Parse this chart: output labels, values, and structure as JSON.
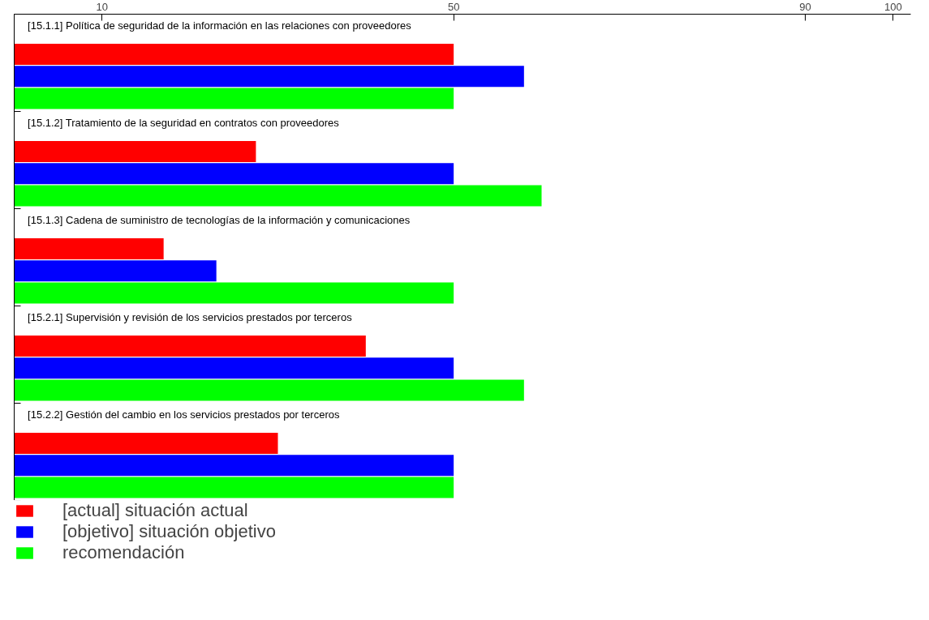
{
  "chart_data": {
    "type": "bar",
    "orientation": "horizontal",
    "categories": [
      "[15.1.1] Política de seguridad de la información en las relaciones con proveedores",
      "[15.1.2] Tratamiento de la seguridad en contratos con proveedores",
      "[15.1.3] Cadena de suministro de tecnologías de la información y comunicaciones",
      "[15.2.1] Supervisión y revisión de los servicios prestados por terceros",
      "[15.2.2] Gestión del cambio en los servicios prestados por terceros"
    ],
    "series": [
      {
        "name": "[actual] situación actual",
        "color": "#ff0000",
        "values": [
          50,
          27.5,
          17,
          40,
          30
        ]
      },
      {
        "name": "[objetivo] situación objetivo",
        "color": "#0000ff",
        "values": [
          58,
          50,
          23,
          50,
          50
        ]
      },
      {
        "name": "recomendación",
        "color": "#00ff00",
        "values": [
          50,
          60,
          50,
          58,
          50
        ]
      }
    ],
    "xlim": [
      0,
      102
    ],
    "xticks": [
      10,
      50,
      90,
      100
    ],
    "grid": false,
    "legend": "bottom"
  }
}
